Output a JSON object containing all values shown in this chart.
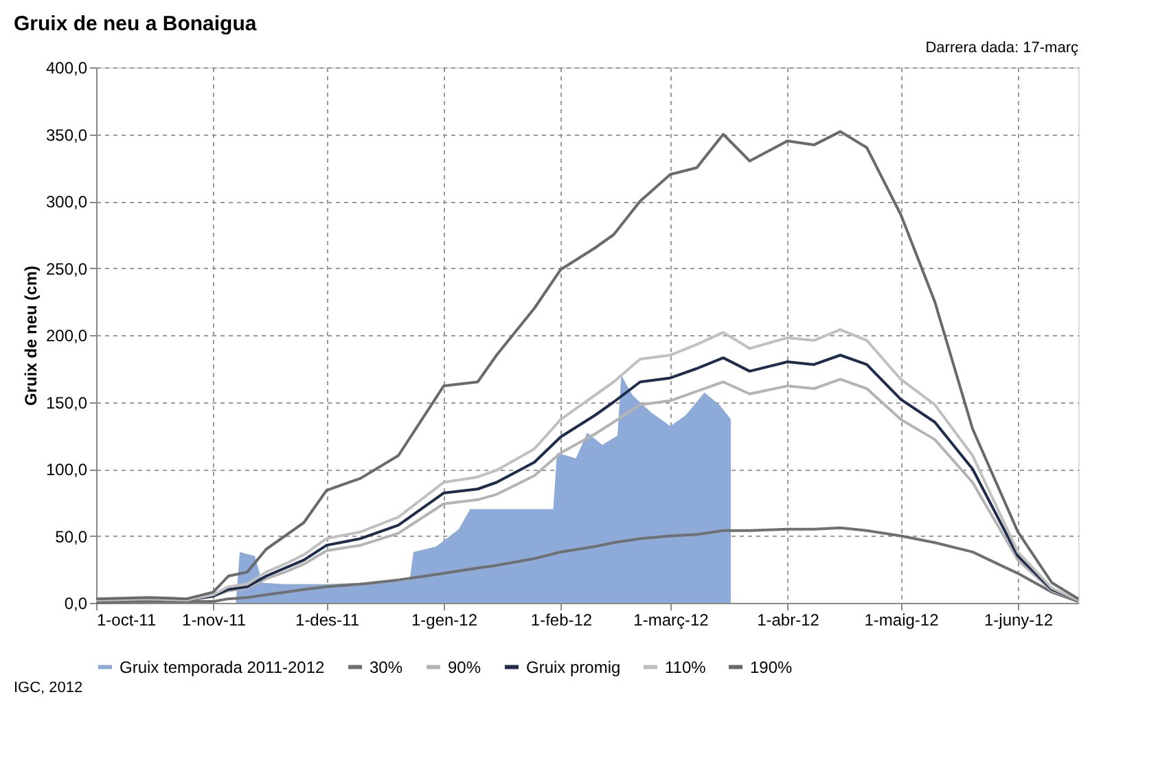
{
  "chart_data": {
    "type": "line",
    "title": "Gruix de neu a Bonaigua",
    "ylabel": "Gruix de neu (cm)",
    "annotations": [
      "Darrera dada: 17-març",
      "IGC, 2012"
    ],
    "x": [
      "2011-10-01",
      "2011-10-15",
      "2011-10-25",
      "2011-11-01",
      "2011-11-05",
      "2011-11-10",
      "2011-11-15",
      "2011-11-20",
      "2011-11-25",
      "2011-12-01",
      "2011-12-10",
      "2011-12-20",
      "2012-01-01",
      "2012-01-10",
      "2012-01-15",
      "2012-01-25",
      "2012-02-01",
      "2012-02-10",
      "2012-02-15",
      "2012-02-22",
      "2012-03-01",
      "2012-03-08",
      "2012-03-15",
      "2012-03-22",
      "2012-04-01",
      "2012-04-08",
      "2012-04-15",
      "2012-04-22",
      "2012-05-01",
      "2012-05-10",
      "2012-05-20",
      "2012-06-01",
      "2012-06-10",
      "2012-06-17"
    ],
    "series": [
      {
        "name": "Gruix temporada 2011-2012",
        "type": "area",
        "color": "#8eaad8",
        "x": [
          "2011-10-01",
          "2011-11-07",
          "2011-11-08",
          "2011-11-12",
          "2011-11-14",
          "2011-11-20",
          "2011-12-01",
          "2011-12-10",
          "2011-12-20",
          "2011-12-23",
          "2011-12-24",
          "2011-12-30",
          "2012-01-05",
          "2012-01-08",
          "2012-01-30",
          "2012-01-31",
          "2012-02-05",
          "2012-02-08",
          "2012-02-12",
          "2012-02-16",
          "2012-02-17",
          "2012-02-20",
          "2012-02-25",
          "2012-03-01",
          "2012-03-05",
          "2012-03-10",
          "2012-03-14",
          "2012-03-17"
        ],
        "values": [
          0,
          0,
          38,
          35,
          15,
          14,
          14,
          15,
          16,
          17,
          38,
          42,
          55,
          70,
          70,
          112,
          108,
          127,
          118,
          125,
          170,
          155,
          142,
          132,
          140,
          157,
          148,
          137
        ]
      },
      {
        "name": "30%",
        "color": "#707070",
        "values": [
          0,
          1,
          1,
          1,
          3,
          4,
          6,
          8,
          10,
          12,
          14,
          17,
          22,
          26,
          28,
          33,
          38,
          42,
          45,
          48,
          50,
          51,
          54,
          54,
          55,
          55,
          56,
          54,
          50,
          45,
          38,
          22,
          8,
          1
        ]
      },
      {
        "name": "90%",
        "color": "#b4b4b4",
        "values": [
          2,
          3,
          2,
          5,
          9,
          11,
          18,
          23,
          29,
          39,
          43,
          52,
          74,
          77,
          81,
          95,
          112,
          126,
          135,
          148,
          151,
          158,
          165,
          156,
          162,
          160,
          167,
          160,
          137,
          122,
          90,
          32,
          9,
          2
        ]
      },
      {
        "name": "Gruix promig",
        "color": "#1f2d4d",
        "values": [
          2,
          3,
          2,
          5,
          10,
          12,
          20,
          26,
          32,
          43,
          48,
          58,
          82,
          85,
          90,
          105,
          124,
          140,
          150,
          165,
          168,
          175,
          183,
          173,
          180,
          178,
          185,
          178,
          152,
          135,
          100,
          35,
          10,
          2
        ]
      },
      {
        "name": "110%",
        "color": "#c0c0c0",
        "values": [
          2,
          3,
          2,
          6,
          12,
          14,
          23,
          29,
          36,
          48,
          53,
          64,
          90,
          94,
          99,
          115,
          137,
          155,
          165,
          182,
          185,
          193,
          202,
          190,
          198,
          196,
          204,
          196,
          167,
          148,
          110,
          38,
          11,
          2
        ]
      },
      {
        "name": "190%",
        "color": "#6a6a6a",
        "values": [
          3,
          4,
          3,
          8,
          20,
          23,
          40,
          50,
          60,
          84,
          93,
          110,
          162,
          165,
          185,
          220,
          249,
          265,
          275,
          300,
          320,
          325,
          350,
          330,
          345,
          342,
          352,
          340,
          290,
          225,
          130,
          53,
          15,
          3
        ]
      }
    ],
    "xlim": [
      "2011-10-01",
      "2012-06-17"
    ],
    "xticks": [
      {
        "value": "2011-10-01",
        "label": "1-oct-11"
      },
      {
        "value": "2011-11-01",
        "label": "1-nov-11"
      },
      {
        "value": "2011-12-01",
        "label": "1-des-11"
      },
      {
        "value": "2012-01-01",
        "label": "1-gen-12"
      },
      {
        "value": "2012-02-01",
        "label": "1-feb-12"
      },
      {
        "value": "2012-03-01",
        "label": "1-març-12"
      },
      {
        "value": "2012-04-01",
        "label": "1-abr-12"
      },
      {
        "value": "2012-05-01",
        "label": "1-maig-12"
      },
      {
        "value": "2012-06-01",
        "label": "1-juny-12"
      }
    ],
    "ylim": [
      0,
      400
    ],
    "yticks": [
      {
        "value": 0,
        "label": "0,0"
      },
      {
        "value": 50,
        "label": "50,0"
      },
      {
        "value": 100,
        "label": "100,0"
      },
      {
        "value": 150,
        "label": "150,0"
      },
      {
        "value": 200,
        "label": "200,0"
      },
      {
        "value": 250,
        "label": "250,0"
      },
      {
        "value": 300,
        "label": "300,0"
      },
      {
        "value": 350,
        "label": "350,0"
      },
      {
        "value": 400,
        "label": "400,0"
      }
    ],
    "grid": true,
    "legend": "bottom",
    "marker": "none",
    "line_style": "solid"
  }
}
